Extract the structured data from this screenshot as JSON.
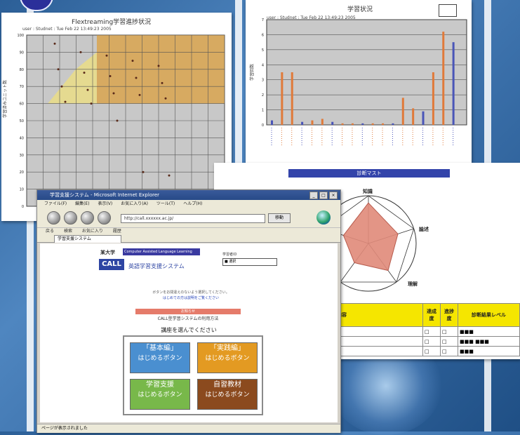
{
  "scatter": {
    "title": "Flextreaming学習進捗状況",
    "subtitle": "user : Studnet : Tue Feb 22 13:49:23 2005",
    "y_axis_label": "学習済みユニット数"
  },
  "barchart": {
    "title": "学習状況",
    "subtitle": "user : Studnet : Tue Feb 22 13:49:23 2005",
    "y_axis_label": "学習回数"
  },
  "radar": {
    "banner": "診断マスト",
    "axis_labels": [
      "知識",
      "論述",
      "理解"
    ]
  },
  "skill_table": {
    "headers": [
      "内容",
      "達成度",
      "進捗度",
      "診断結果レベル"
    ]
  },
  "browser": {
    "window_title": "学習支援システム - Microsoft Internet Explorer",
    "menu_items": [
      "ファイル(F)",
      "編集(E)",
      "表示(V)",
      "お気に入り(A)",
      "ツール(T)",
      "ヘルプ(H)"
    ],
    "address_value": "http://call.xxxxxx.ac.jp/",
    "go_label": "移動",
    "links_items": [
      "戻る",
      "検索",
      "お気に入り",
      "履歴"
    ],
    "tab_label": "学習支援システム",
    "status_text": "ページが表示されました"
  },
  "page": {
    "university_label": "某大学",
    "banner_text": "Computer Assisted Language Learning",
    "call_logo": "CALL",
    "call_subtitle": "英語学習支援システム",
    "select_label": "学習者ID",
    "select_value": "■ 選択",
    "notice_line1": "ボタンをお間違えのないよう選択してください。",
    "notice_line2": "はじめての方は説明をご覧ください",
    "red_bar_text": "お知らせ",
    "red_line_text": "CALL型学習システムの利用方法",
    "menu_title": "講座を選んでください",
    "menu": [
      {
        "label": "「基本編」",
        "sub": "はじめるボタン",
        "color": "#4a8fd0"
      },
      {
        "label": "「実践編」",
        "sub": "はじめるボタン",
        "color": "#e39a22"
      },
      {
        "label": "学習支援",
        "sub": "はじめるボタン",
        "color": "#78b84a"
      },
      {
        "label": "自習教材",
        "sub": "はじめるボタン",
        "color": "#8b4a1e"
      }
    ]
  },
  "chart_data": [
    {
      "type": "scatter",
      "title": "Flextreaming学習進捗状況",
      "ylabel": "学習済みユニット数",
      "ylim": [
        0,
        100
      ],
      "ytick_labels": [
        "0",
        "10",
        "20",
        "30",
        "40",
        "50",
        "60",
        "70",
        "80",
        "90",
        "100"
      ],
      "points_y": [
        95,
        90,
        88,
        85,
        82,
        80,
        78,
        76,
        75,
        72,
        70,
        68,
        66,
        65,
        63,
        61,
        60,
        50,
        20,
        18
      ]
    },
    {
      "type": "bar",
      "title": "学習状況",
      "ylim": [
        0,
        7
      ],
      "ytick_labels": [
        "0",
        "1",
        "2",
        "3",
        "4",
        "5",
        "6",
        "7"
      ],
      "values": [
        0.3,
        3.5,
        3.5,
        0.2,
        0.3,
        0.4,
        0.2,
        0.1,
        0.1,
        0.1,
        0.1,
        0.1,
        0.1,
        1.8,
        1.1,
        0.9,
        3.5,
        6.2,
        5.5
      ]
    },
    {
      "type": "radar",
      "axes": [
        "知識",
        "論述",
        "理解",
        "",
        ""
      ],
      "values": [
        0.85,
        0.65,
        0.7,
        0.5,
        0.55
      ]
    }
  ]
}
